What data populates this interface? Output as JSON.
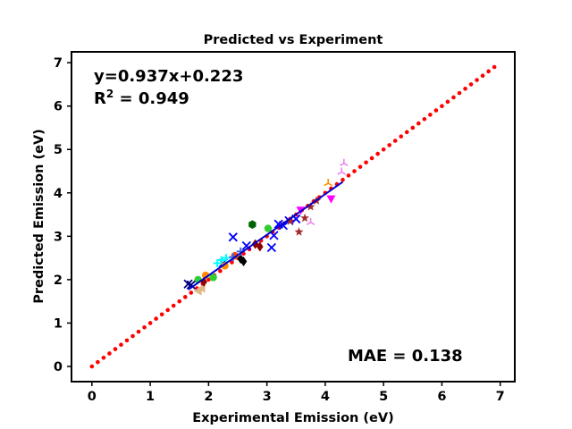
{
  "chart_data": {
    "type": "scatter",
    "title": "Predicted vs Experiment",
    "xlabel": "Experimental Emission (eV)",
    "ylabel": "Predicted Emission (eV)",
    "xlim": [
      -0.35,
      7.25
    ],
    "ylim": [
      -0.35,
      7.25
    ],
    "x_ticks": [
      "0",
      "1",
      "2",
      "3",
      "4",
      "5",
      "6",
      "7"
    ],
    "y_ticks": [
      "0",
      "1",
      "2",
      "3",
      "4",
      "5",
      "6",
      "7"
    ],
    "grid": false,
    "annotations": {
      "equation": "y=0.937x+0.223",
      "r2_prefix": "R",
      "r2_sup": "2",
      "r2_value": " = 0.949",
      "mae": "MAE = 0.138"
    },
    "identity_line": {
      "color": "#ff0000",
      "from": 0.0,
      "to": 6.9,
      "step": 0.1
    },
    "fit_line": {
      "color": "#0000cd",
      "slope": 0.937,
      "intercept": 0.223,
      "x_range": [
        1.65,
        4.3
      ]
    },
    "series": [
      {
        "marker": "x",
        "color": "#0000ff",
        "points": [
          [
            2.42,
            2.98
          ],
          [
            3.08,
            2.74
          ],
          [
            3.12,
            3.02
          ],
          [
            3.2,
            3.28
          ],
          [
            3.38,
            3.36
          ],
          [
            3.5,
            3.4
          ],
          [
            2.25,
            2.38
          ],
          [
            2.65,
            2.78
          ],
          [
            3.28,
            3.25
          ]
        ]
      },
      {
        "marker": "circle",
        "color": "#32cd32",
        "points": [
          [
            1.82,
            2.0
          ],
          [
            3.02,
            3.18
          ],
          [
            2.08,
            2.05
          ]
        ]
      },
      {
        "marker": "circle",
        "color": "#ff8c00",
        "points": [
          [
            1.95,
            2.1
          ],
          [
            2.28,
            2.32
          ]
        ]
      },
      {
        "marker": "plus",
        "color": "#00ffff",
        "points": [
          [
            2.15,
            2.38
          ],
          [
            2.22,
            2.45
          ],
          [
            2.3,
            2.5
          ]
        ]
      },
      {
        "marker": "triangle-left",
        "color": "#deb887",
        "points": [
          [
            1.82,
            1.74
          ],
          [
            1.88,
            1.8
          ]
        ]
      },
      {
        "marker": "hexagon",
        "color": "#006400",
        "points": [
          [
            2.75,
            3.27
          ]
        ]
      },
      {
        "marker": "diamond",
        "color": "#000000",
        "points": [
          [
            2.6,
            2.42
          ],
          [
            2.55,
            2.48
          ]
        ]
      },
      {
        "marker": "diamond",
        "color": "#8b0000",
        "points": [
          [
            2.8,
            2.82
          ],
          [
            2.88,
            2.76
          ],
          [
            1.92,
            1.95
          ]
        ]
      },
      {
        "marker": "star",
        "color": "#a52a2a",
        "points": [
          [
            3.55,
            3.1
          ],
          [
            3.65,
            3.42
          ],
          [
            3.75,
            3.68
          ],
          [
            3.85,
            3.82
          ],
          [
            3.4,
            3.35
          ]
        ]
      },
      {
        "marker": "triangle-down",
        "color": "#ff00ff",
        "points": [
          [
            4.1,
            3.86
          ],
          [
            3.58,
            3.6
          ]
        ]
      },
      {
        "marker": "tri",
        "color": "#ee82ee",
        "points": [
          [
            4.28,
            4.48
          ],
          [
            4.32,
            4.68
          ],
          [
            3.75,
            3.32
          ]
        ]
      },
      {
        "marker": "tri",
        "color": "#ff8c00",
        "points": [
          [
            4.05,
            4.22
          ]
        ]
      },
      {
        "marker": "x",
        "color": "#000080",
        "points": [
          [
            1.65,
            1.9
          ],
          [
            1.7,
            1.88
          ]
        ]
      },
      {
        "marker": "circle",
        "color": "#ff4500",
        "points": [
          [
            2.45,
            2.55
          ]
        ]
      },
      {
        "marker": "plus",
        "color": "#4169e1",
        "points": [
          [
            2.55,
            2.65
          ],
          [
            2.42,
            2.52
          ]
        ]
      }
    ]
  }
}
